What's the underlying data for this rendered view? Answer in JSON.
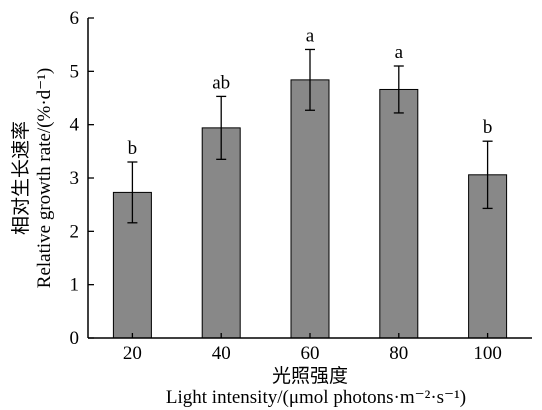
{
  "chart_data": {
    "type": "bar",
    "categories": [
      "20",
      "40",
      "60",
      "80",
      "100"
    ],
    "values": [
      2.73,
      3.94,
      4.84,
      4.66,
      3.06
    ],
    "errors": [
      0.57,
      0.59,
      0.57,
      0.44,
      0.63
    ],
    "significance": [
      "b",
      "ab",
      "a",
      "a",
      "b"
    ],
    "ylim": [
      0,
      6
    ],
    "yticks": [
      "0",
      "1",
      "2",
      "3",
      "4",
      "5",
      "6"
    ],
    "xlabel": "Light intensity/(μmol photons·m⁻²·s⁻¹)",
    "xlabel_cn": "光照强度",
    "ylabel": "Relative growth rate/(%·d⁻¹)",
    "ylabel_cn": "相对生长速率",
    "grid": false,
    "bar_color": "#888888",
    "error_bar_color": "#000000"
  }
}
